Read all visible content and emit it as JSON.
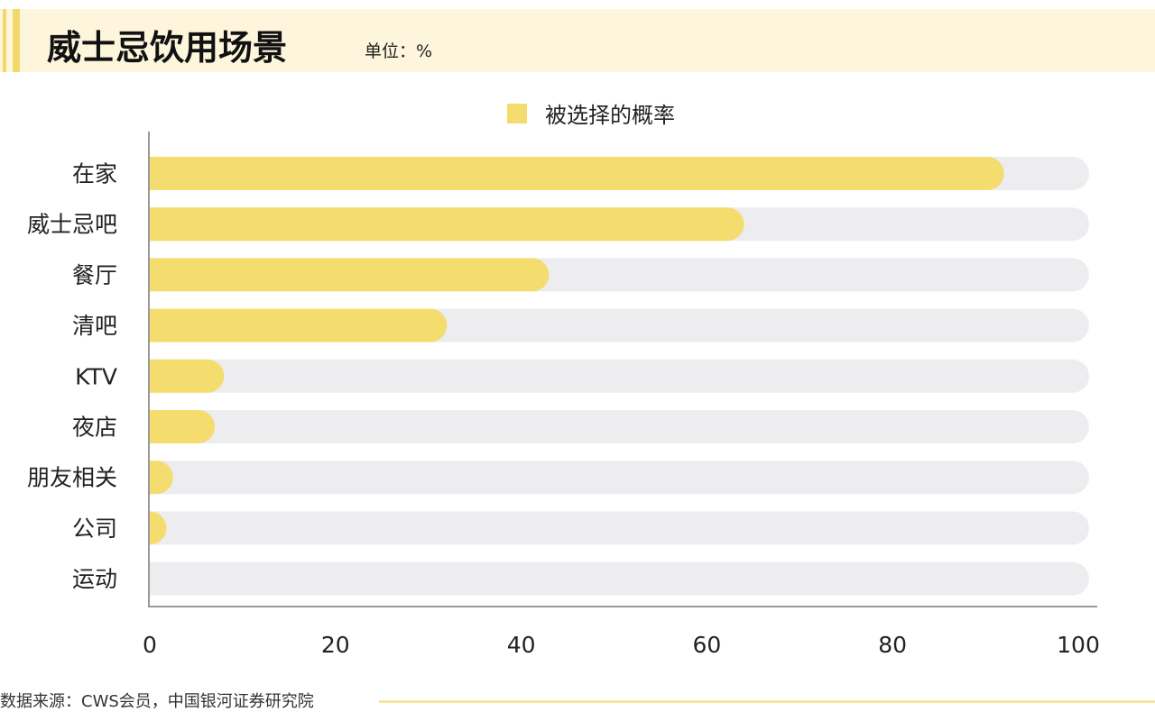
{
  "header": {
    "title": "威士忌饮用场景",
    "unit": "单位：%"
  },
  "footer": {
    "source": "数据来源：CWS会员，中国银河证券研究院"
  },
  "colors": {
    "bar": "#f5dc6e",
    "track": "#ededf0",
    "axis": "#999999"
  },
  "chart_data": {
    "type": "bar",
    "orientation": "horizontal",
    "title": "威士忌饮用场景",
    "legend": [
      "被选择的概率"
    ],
    "legend_position": "top-center",
    "categories": [
      "在家",
      "威士忌吧",
      "餐厅",
      "清吧",
      "KTV",
      "夜店",
      "朋友相关",
      "公司",
      "运动"
    ],
    "series": [
      {
        "name": "被选择的概率",
        "values": [
          92,
          64,
          43,
          32,
          8,
          7,
          2.5,
          0.5,
          0
        ]
      }
    ],
    "xlim": [
      0,
      100
    ],
    "xticks": [
      "0",
      "20",
      "40",
      "60",
      "80",
      "100"
    ],
    "xlabel": "",
    "ylabel": ""
  }
}
